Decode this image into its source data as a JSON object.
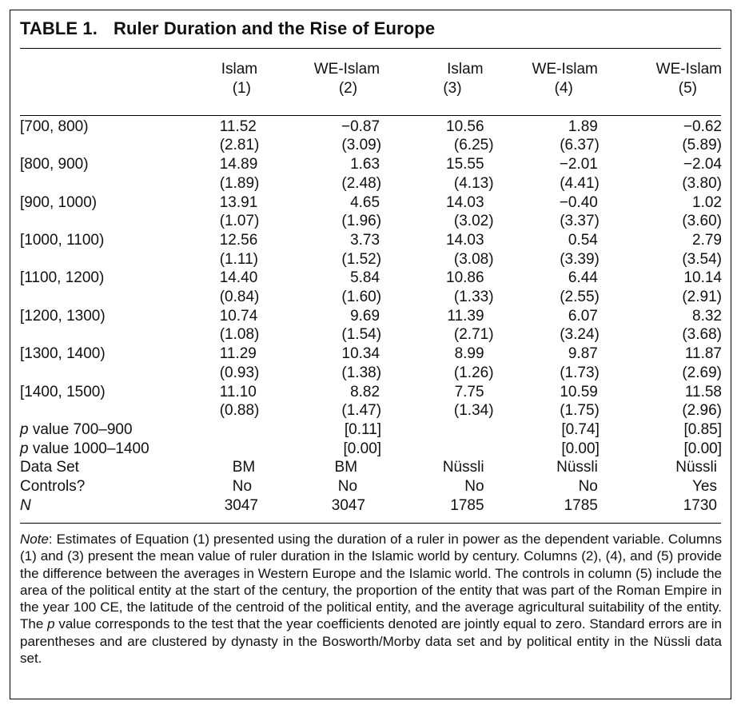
{
  "title": {
    "number": "TABLE 1.",
    "text": "Ruler Duration and the Rise of Europe"
  },
  "columns": [
    {
      "name": "Islam",
      "index": "(1)"
    },
    {
      "name": "WE-Islam",
      "index": "(2)"
    },
    {
      "name": "Islam",
      "index": "(3)"
    },
    {
      "name": "WE-Islam",
      "index": "(4)"
    },
    {
      "name": "WE-Islam",
      "index": "(5)"
    }
  ],
  "rows": [
    {
      "label": "[700, 800)",
      "est": [
        "11.52",
        "−0.87",
        "10.56",
        "1.89",
        "−0.62"
      ],
      "se": [
        "(2.81)",
        "(3.09)",
        "(6.25)",
        "(6.37)",
        "(5.89)"
      ]
    },
    {
      "label": "[800, 900)",
      "est": [
        "14.89",
        "1.63",
        "15.55",
        "−2.01",
        "−2.04"
      ],
      "se": [
        "(1.89)",
        "(2.48)",
        "(4.13)",
        "(4.41)",
        "(3.80)"
      ]
    },
    {
      "label": "[900, 1000)",
      "est": [
        "13.91",
        "4.65",
        "14.03",
        "−0.40",
        "1.02"
      ],
      "se": [
        "(1.07)",
        "(1.96)",
        "(3.02)",
        "(3.37)",
        "(3.60)"
      ]
    },
    {
      "label": "[1000, 1100)",
      "est": [
        "12.56",
        "3.73",
        "14.03",
        "0.54",
        "2.79"
      ],
      "se": [
        "(1.11)",
        "(1.52)",
        "(3.08)",
        "(3.39)",
        "(3.54)"
      ]
    },
    {
      "label": "[1100, 1200)",
      "est": [
        "14.40",
        "5.84",
        "10.86",
        "6.44",
        "10.14"
      ],
      "se": [
        "(0.84)",
        "(1.60)",
        "(1.33)",
        "(2.55)",
        "(2.91)"
      ]
    },
    {
      "label": "[1200, 1300)",
      "est": [
        "10.74",
        "9.69",
        "11.39",
        "6.07",
        "8.32"
      ],
      "se": [
        "(1.08)",
        "(1.54)",
        "(2.71)",
        "(3.24)",
        "(3.68)"
      ]
    },
    {
      "label": "[1300, 1400)",
      "est": [
        "11.29",
        "10.34",
        "8.99",
        "9.87",
        "11.87"
      ],
      "se": [
        "(0.93)",
        "(1.38)",
        "(1.26)",
        "(1.73)",
        "(2.69)"
      ]
    },
    {
      "label": "[1400, 1500)",
      "est": [
        "11.10",
        "8.82",
        "7.75",
        "10.59",
        "11.58"
      ],
      "se": [
        "(0.88)",
        "(1.47)",
        "(1.34)",
        "(1.75)",
        "(2.96)"
      ]
    }
  ],
  "pvalues": [
    {
      "label_p": "p",
      "label_rest": " value 700–900",
      "vals": [
        "",
        "[0.11]",
        "",
        "[0.74]",
        "[0.85]"
      ]
    },
    {
      "label_p": "p",
      "label_rest": " value 1000–1400",
      "vals": [
        "",
        "[0.00]",
        "",
        "[0.00]",
        "[0.00]"
      ]
    }
  ],
  "footer_rows": [
    {
      "label": "Data Set",
      "vals": [
        "BM",
        "BM",
        "Nüssli",
        "Nüssli",
        "Nüssli"
      ]
    },
    {
      "label": "Controls?",
      "vals": [
        "No",
        "No",
        "No",
        "No",
        "Yes"
      ]
    }
  ],
  "n_row": {
    "label": "N",
    "vals": [
      "3047",
      "3047",
      "1785",
      "1785",
      "1730"
    ]
  },
  "note": {
    "lead": "Note",
    "part1": ": Estimates of Equation (1) presented using the duration of a ruler in power as the dependent variable. Columns (1) and (3) present the mean value of ruler duration in the Islamic world by century. Columns (2), (4), and (5) provide the difference between the averages in Western Europe and the Islamic world. The controls in column (5) include the area of the political entity at the start of the century, the proportion of the entity that was part of the Roman Empire in the year 100 CE, the latitude of the centroid of the political entity, and the average agricultural suitability of the entity. The ",
    "p": "p",
    "part2": " value corresponds to the test that the year coefficients denoted are jointly equal to zero. Standard errors are in parentheses and are clustered by dynasty in the Bosworth/Morby data set and by political entity in the Nüssli data set."
  }
}
